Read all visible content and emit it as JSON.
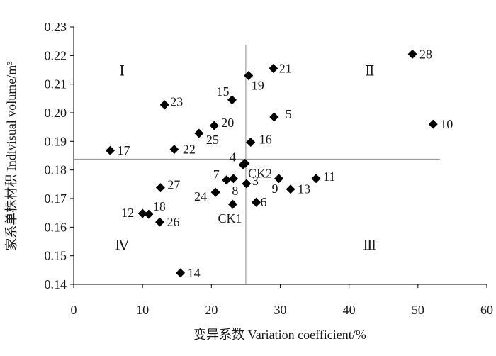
{
  "chart_data": {
    "type": "scatter",
    "xlabel": "变异系数 Variation coefficient/%",
    "ylabel": "家系单株材积 Indivisual volume/m³",
    "xlim": [
      0,
      60
    ],
    "ylim": [
      0.14,
      0.23
    ],
    "x_ticks": [
      0,
      10,
      20,
      30,
      40,
      50,
      60
    ],
    "y_ticks": [
      "0.14",
      "0.15",
      "0.16",
      "0.17",
      "0.18",
      "0.19",
      "0.20",
      "0.21",
      "0.22",
      "0.23"
    ],
    "marker": "diamond",
    "marker_color": "#000000",
    "reference_lines": {
      "x": 25.0,
      "y": 0.1838
    },
    "quadrant_labels": [
      {
        "text": "Ⅰ",
        "x": 7.0,
        "y": 0.213
      },
      {
        "text": "Ⅱ",
        "x": 43.0,
        "y": 0.213
      },
      {
        "text": "Ⅲ",
        "x": 43.0,
        "y": 0.152
      },
      {
        "text": "Ⅳ",
        "x": 7.0,
        "y": 0.152
      }
    ],
    "points": [
      {
        "label": "28",
        "x": 49.2,
        "y": 0.2205
      },
      {
        "label": "21",
        "x": 29.0,
        "y": 0.2155
      },
      {
        "label": "19",
        "x": 25.4,
        "y": 0.213
      },
      {
        "label": "15",
        "x": 23.0,
        "y": 0.2045
      },
      {
        "label": "23",
        "x": 13.2,
        "y": 0.2028
      },
      {
        "label": "5",
        "x": 29.1,
        "y": 0.1985
      },
      {
        "label": "10",
        "x": 52.2,
        "y": 0.196
      },
      {
        "label": "20",
        "x": 20.4,
        "y": 0.1955
      },
      {
        "label": "25",
        "x": 18.2,
        "y": 0.1928
      },
      {
        "label": "16",
        "x": 25.7,
        "y": 0.1897
      },
      {
        "label": "17",
        "x": 5.3,
        "y": 0.1868
      },
      {
        "label": "22",
        "x": 14.6,
        "y": 0.1872
      },
      {
        "label": "4",
        "x": 24.6,
        "y": 0.1818
      },
      {
        "label": "CK2",
        "x": 24.9,
        "y": 0.1823
      },
      {
        "label": "7",
        "x": 22.2,
        "y": 0.1765
      },
      {
        "label": "8",
        "x": 23.2,
        "y": 0.177
      },
      {
        "label": "3",
        "x": 25.1,
        "y": 0.1752
      },
      {
        "label": "11",
        "x": 35.2,
        "y": 0.177
      },
      {
        "label": "9",
        "x": 29.8,
        "y": 0.177
      },
      {
        "label": "13",
        "x": 31.5,
        "y": 0.1733
      },
      {
        "label": "27",
        "x": 12.6,
        "y": 0.1738
      },
      {
        "label": "24",
        "x": 20.6,
        "y": 0.1722
      },
      {
        "label": "6",
        "x": 26.5,
        "y": 0.1687
      },
      {
        "label": "CK1",
        "x": 23.1,
        "y": 0.168
      },
      {
        "label": "18",
        "x": 10.9,
        "y": 0.1645
      },
      {
        "label": "12",
        "x": 10.0,
        "y": 0.1648
      },
      {
        "label": "26",
        "x": 12.5,
        "y": 0.1618
      },
      {
        "label": "14",
        "x": 15.5,
        "y": 0.144
      }
    ]
  }
}
